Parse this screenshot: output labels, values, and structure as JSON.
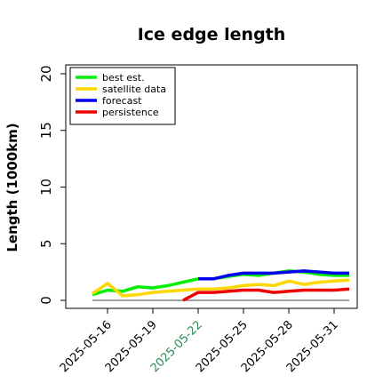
{
  "chart_data": {
    "type": "line",
    "title": "Ice edge length",
    "xlabel": "",
    "ylabel": "Length (1000km)",
    "ylim": [
      -0.5,
      21
    ],
    "yticks": [
      0,
      5,
      10,
      15,
      20
    ],
    "xticks": [
      "2025-05-16",
      "2025-05-19",
      "2025-05-22",
      "2025-05-25",
      "2025-05-28",
      "2025-05-31"
    ],
    "highlighted_xtick": "2025-05-22",
    "highlight_color": "#2e8b57",
    "x_start": "2025-05-15",
    "grid": false,
    "legend_position": "top-left",
    "reference_line": {
      "y": 0,
      "x_from": "2025-05-15",
      "x_to": "2025-06-01",
      "color": "#808080"
    },
    "series": [
      {
        "name": "best est.",
        "color": "#00ee00",
        "x": [
          "2025-05-15",
          "2025-05-16",
          "2025-05-17",
          "2025-05-18",
          "2025-05-19",
          "2025-05-20",
          "2025-05-21",
          "2025-05-22",
          "2025-05-23",
          "2025-05-24",
          "2025-05-25",
          "2025-05-26",
          "2025-05-27",
          "2025-05-28",
          "2025-05-29",
          "2025-05-30",
          "2025-05-31",
          "2025-06-01"
        ],
        "values": [
          0.5,
          0.9,
          0.8,
          1.2,
          1.1,
          1.3,
          1.6,
          1.9,
          1.9,
          2.1,
          2.3,
          2.2,
          2.4,
          2.6,
          2.5,
          2.3,
          2.2,
          2.2
        ]
      },
      {
        "name": "satellite data",
        "color": "#ffd700",
        "x": [
          "2025-05-15",
          "2025-05-16",
          "2025-05-17",
          "2025-05-18",
          "2025-05-19",
          "2025-05-20",
          "2025-05-21",
          "2025-05-22",
          "2025-05-23",
          "2025-05-24",
          "2025-05-25",
          "2025-05-26",
          "2025-05-27",
          "2025-05-28",
          "2025-05-29",
          "2025-05-30",
          "2025-05-31",
          "2025-06-01"
        ],
        "values": [
          0.6,
          1.5,
          0.4,
          0.5,
          0.7,
          0.8,
          0.9,
          1.0,
          1.0,
          1.1,
          1.3,
          1.4,
          1.3,
          1.7,
          1.4,
          1.6,
          1.7,
          1.8
        ]
      },
      {
        "name": "forecast",
        "color": "#0000ee",
        "x": [
          "2025-05-22",
          "2025-05-23",
          "2025-05-24",
          "2025-05-25",
          "2025-05-26",
          "2025-05-27",
          "2025-05-28",
          "2025-05-29",
          "2025-05-30",
          "2025-05-31",
          "2025-06-01"
        ],
        "values": [
          1.9,
          1.9,
          2.2,
          2.4,
          2.4,
          2.4,
          2.5,
          2.6,
          2.5,
          2.4,
          2.4
        ]
      },
      {
        "name": "persistence",
        "color": "#ee0000",
        "x": [
          "2025-05-21",
          "2025-05-22",
          "2025-05-23",
          "2025-05-24",
          "2025-05-25",
          "2025-05-26",
          "2025-05-27",
          "2025-05-28",
          "2025-05-29",
          "2025-05-30",
          "2025-05-31",
          "2025-06-01"
        ],
        "values": [
          0.0,
          0.7,
          0.7,
          0.8,
          0.9,
          0.9,
          0.7,
          0.8,
          0.9,
          0.9,
          0.9,
          1.0
        ]
      }
    ]
  }
}
